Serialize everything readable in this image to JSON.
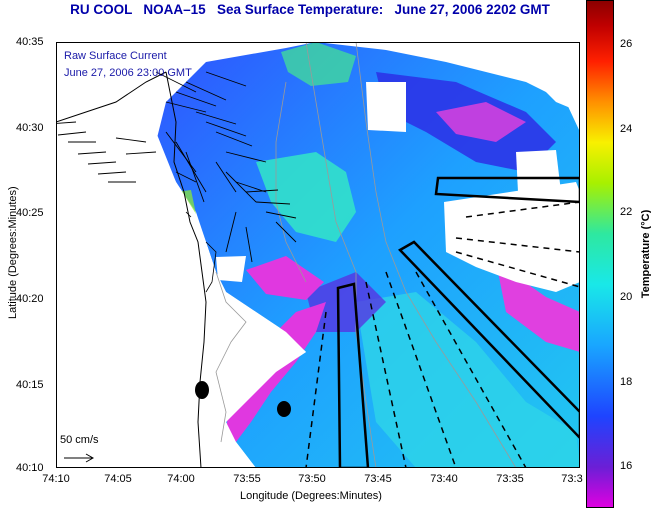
{
  "title": {
    "prefix": "RU COOL",
    "platform": "NOAA–15",
    "product": "Sea Surface Temperature:",
    "datetime": "June 27, 2006 2202 GMT",
    "color": "#0000aa"
  },
  "legend": {
    "current_label": "Raw Surface Current",
    "current_time": "June 27, 2006 23:00 GMT",
    "scale_label": "50 cm/s",
    "text_color": "#1a1aa8"
  },
  "axes": {
    "y_title": "Latitude (Degrees:Minutes)",
    "x_title": "Longitude (Degrees:Minutes)",
    "y_ticks": [
      "40:35",
      "40:30",
      "40:25",
      "40:20",
      "40:15",
      "40:10"
    ],
    "x_ticks": [
      "74:10",
      "74:05",
      "74:00",
      "73:55",
      "73:50",
      "73:45",
      "73:40",
      "73:35",
      "73:3"
    ]
  },
  "colorbar": {
    "title": "Temperature (°C)",
    "ticks": [
      "26",
      "24",
      "22",
      "20",
      "18",
      "16"
    ],
    "range": [
      15.0,
      27.5
    ],
    "colors": [
      "#e000e0",
      "#6b1fd6",
      "#1e44ff",
      "#19a6ff",
      "#19e8e8",
      "#2ee8a0",
      "#a8f000",
      "#f8f000",
      "#ff9000",
      "#ff2000",
      "#c00000",
      "#8b0000"
    ]
  },
  "markers": {
    "count": 2,
    "color": "#000000"
  }
}
